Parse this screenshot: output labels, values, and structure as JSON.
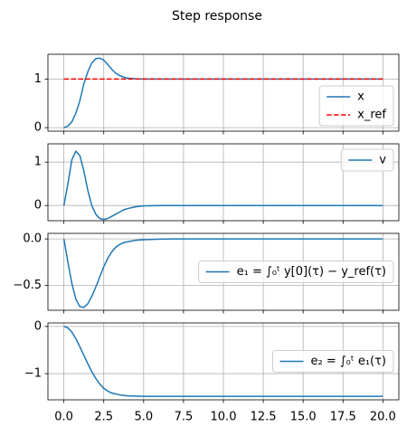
{
  "title": "Step response",
  "chart_data": [
    {
      "type": "line",
      "xlim": [
        -1,
        21
      ],
      "ylim": [
        -0.072,
        1.51
      ],
      "xticks": [
        0,
        2.5,
        5,
        7.5,
        10,
        12.5,
        15,
        17.5,
        20
      ],
      "yticks": [
        0,
        1
      ],
      "grid": true,
      "legend": "lower right",
      "x": [
        0,
        0.25,
        0.5,
        0.75,
        1,
        1.25,
        1.5,
        1.75,
        2,
        2.25,
        2.5,
        2.75,
        3,
        3.25,
        3.5,
        3.75,
        4,
        4.5,
        5,
        6,
        7,
        20
      ],
      "series": [
        {
          "name": "x",
          "color": "#1f77b4",
          "linestyle": "solid",
          "values": [
            0,
            0.03,
            0.12,
            0.3,
            0.55,
            0.9,
            1.15,
            1.33,
            1.42,
            1.43,
            1.39,
            1.3,
            1.2,
            1.12,
            1.07,
            1.04,
            1.02,
            1.005,
            1,
            1,
            1,
            1
          ]
        },
        {
          "name": "x_ref",
          "color": "#ff0000",
          "linestyle": "dashed",
          "values": [
            1,
            1,
            1,
            1,
            1,
            1,
            1,
            1,
            1,
            1,
            1,
            1,
            1,
            1,
            1,
            1,
            1,
            1,
            1,
            1,
            1,
            1
          ]
        }
      ]
    },
    {
      "type": "line",
      "xlim": [
        -1,
        21
      ],
      "ylim": [
        -0.35,
        1.42
      ],
      "xticks": [
        0,
        2.5,
        5,
        7.5,
        10,
        12.5,
        15,
        17.5,
        20
      ],
      "yticks": [
        0,
        1
      ],
      "grid": true,
      "legend": "upper right",
      "x": [
        0,
        0.25,
        0.5,
        0.75,
        1,
        1.25,
        1.5,
        1.75,
        2,
        2.25,
        2.5,
        2.75,
        3,
        3.25,
        3.5,
        3.75,
        4,
        4.5,
        5,
        6,
        7,
        20
      ],
      "series": [
        {
          "name": "v",
          "color": "#1f77b4",
          "linestyle": "solid",
          "values": [
            0,
            0.5,
            1.05,
            1.25,
            1.15,
            0.8,
            0.35,
            0,
            -0.2,
            -0.3,
            -0.32,
            -0.3,
            -0.25,
            -0.2,
            -0.15,
            -0.1,
            -0.07,
            -0.03,
            -0.01,
            0,
            0,
            0
          ]
        }
      ]
    },
    {
      "type": "line",
      "xlim": [
        -1,
        21
      ],
      "ylim": [
        -0.77,
        0.06
      ],
      "xticks": [
        0,
        2.5,
        5,
        7.5,
        10,
        12.5,
        15,
        17.5,
        20
      ],
      "yticks": [
        {
          "value": 0,
          "label": "0.0"
        },
        {
          "value": -0.5,
          "label": "−0.5"
        }
      ],
      "grid": true,
      "legend": "center right",
      "x": [
        0,
        0.25,
        0.5,
        0.75,
        1,
        1.25,
        1.5,
        1.75,
        2,
        2.25,
        2.5,
        2.75,
        3,
        3.25,
        3.5,
        3.75,
        4,
        4.5,
        5,
        6,
        7,
        20
      ],
      "series": [
        {
          "name": "e₁ = ∫₀ᵗ y[0](τ) − y_ref(τ)",
          "color": "#1f77b4",
          "linestyle": "solid",
          "values": [
            0,
            -0.25,
            -0.48,
            -0.65,
            -0.73,
            -0.74,
            -0.7,
            -0.62,
            -0.52,
            -0.41,
            -0.3,
            -0.21,
            -0.14,
            -0.09,
            -0.06,
            -0.04,
            -0.03,
            -0.015,
            -0.008,
            -0.002,
            0,
            0
          ]
        }
      ]
    },
    {
      "type": "line",
      "xlim": [
        -1,
        21
      ],
      "ylim": [
        -1.554,
        0.074
      ],
      "xticks": [
        {
          "value": 0,
          "label": "0.0"
        },
        {
          "value": 2.5,
          "label": "2.5"
        },
        {
          "value": 5,
          "label": "5.0"
        },
        {
          "value": 7.5,
          "label": "7.5"
        },
        {
          "value": 10,
          "label": "10.0"
        },
        {
          "value": 12.5,
          "label": "12.5"
        },
        {
          "value": 15,
          "label": "15.0"
        },
        {
          "value": 17.5,
          "label": "17.5"
        },
        {
          "value": 20,
          "label": "20.0"
        }
      ],
      "yticks": [
        0,
        {
          "value": -1,
          "label": "−1"
        }
      ],
      "grid": true,
      "legend": "center right",
      "x": [
        0,
        0.25,
        0.5,
        0.75,
        1,
        1.25,
        1.5,
        1.75,
        2,
        2.25,
        2.5,
        2.75,
        3,
        3.25,
        3.5,
        3.75,
        4,
        4.5,
        5,
        6,
        7,
        20
      ],
      "series": [
        {
          "name": "e₂ = ∫₀ᵗ e₁(τ)",
          "color": "#1f77b4",
          "linestyle": "solid",
          "values": [
            0,
            -0.03,
            -0.12,
            -0.26,
            -0.43,
            -0.61,
            -0.79,
            -0.96,
            -1.1,
            -1.22,
            -1.31,
            -1.37,
            -1.41,
            -1.43,
            -1.45,
            -1.46,
            -1.47,
            -1.475,
            -1.48,
            -1.48,
            -1.48,
            -1.48
          ]
        }
      ]
    }
  ]
}
